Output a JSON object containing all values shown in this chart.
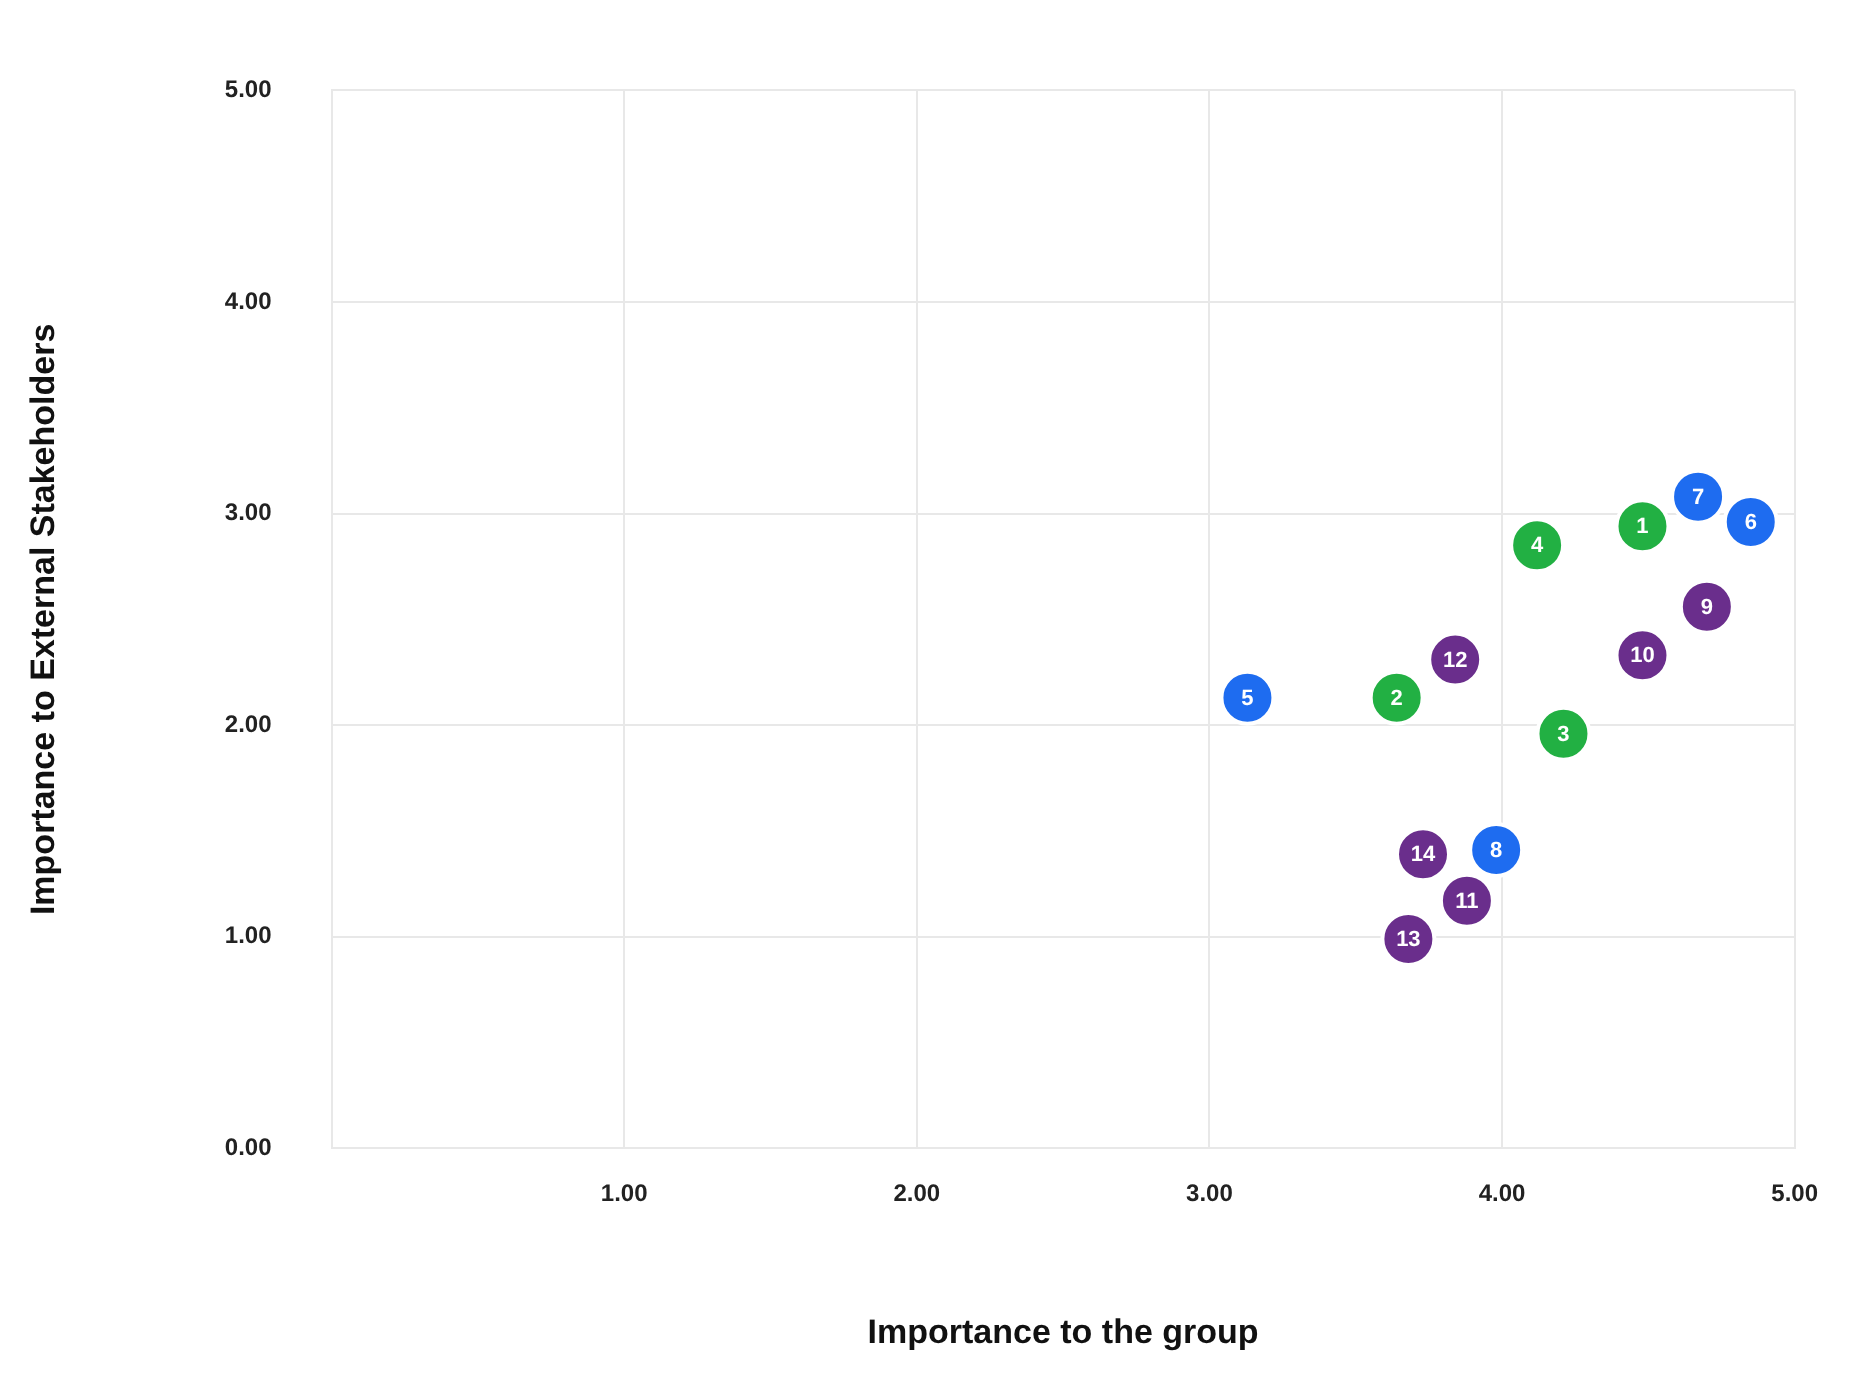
{
  "chart_data": {
    "type": "scatter",
    "xlabel": "Importance to the group",
    "ylabel": "Importance to External Stakeholders",
    "xlim": [
      0,
      5
    ],
    "ylim": [
      0,
      5
    ],
    "xticks": [
      {
        "value": 1,
        "label": "1.00"
      },
      {
        "value": 2,
        "label": "2.00"
      },
      {
        "value": 3,
        "label": "3.00"
      },
      {
        "value": 4,
        "label": "4.00"
      },
      {
        "value": 5,
        "label": "5.00"
      }
    ],
    "yticks": [
      {
        "value": 0,
        "label": "0.00"
      },
      {
        "value": 1,
        "label": "1.00"
      },
      {
        "value": 2,
        "label": "2.00"
      },
      {
        "value": 3,
        "label": "3.00"
      },
      {
        "value": 4,
        "label": "4.00"
      },
      {
        "value": 5,
        "label": "5.00"
      }
    ],
    "grid": true,
    "marker": "circle",
    "series": [
      {
        "color": "#22b043",
        "x": [
          4.48,
          3.64,
          4.21,
          4.12
        ],
        "values": [
          2.94,
          2.13,
          1.96,
          2.85
        ]
      },
      {
        "color": "#1e6cf0",
        "x": [
          3.13,
          4.85,
          4.67,
          3.98
        ],
        "values": [
          2.13,
          2.96,
          3.08,
          1.41
        ]
      },
      {
        "color": "#6a2e8c",
        "x": [
          4.7,
          4.48,
          3.88,
          3.84,
          3.68,
          3.73
        ],
        "values": [
          2.56,
          2.33,
          1.17,
          2.31,
          0.99,
          1.39
        ]
      }
    ],
    "annotations": [
      {
        "text": "1",
        "x": 4.48,
        "y": 2.94
      },
      {
        "text": "2",
        "x": 3.64,
        "y": 2.13
      },
      {
        "text": "3",
        "x": 4.21,
        "y": 1.96
      },
      {
        "text": "4",
        "x": 4.12,
        "y": 2.85
      },
      {
        "text": "5",
        "x": 3.13,
        "y": 2.13
      },
      {
        "text": "6",
        "x": 4.85,
        "y": 2.96
      },
      {
        "text": "7",
        "x": 4.67,
        "y": 3.08
      },
      {
        "text": "8",
        "x": 3.98,
        "y": 1.41
      },
      {
        "text": "9",
        "x": 4.7,
        "y": 2.56
      },
      {
        "text": "10",
        "x": 4.48,
        "y": 2.33
      },
      {
        "text": "11",
        "x": 3.88,
        "y": 1.17
      },
      {
        "text": "12",
        "x": 3.84,
        "y": 2.31
      },
      {
        "text": "13",
        "x": 3.68,
        "y": 0.99
      },
      {
        "text": "14",
        "x": 3.73,
        "y": 1.39
      }
    ]
  }
}
